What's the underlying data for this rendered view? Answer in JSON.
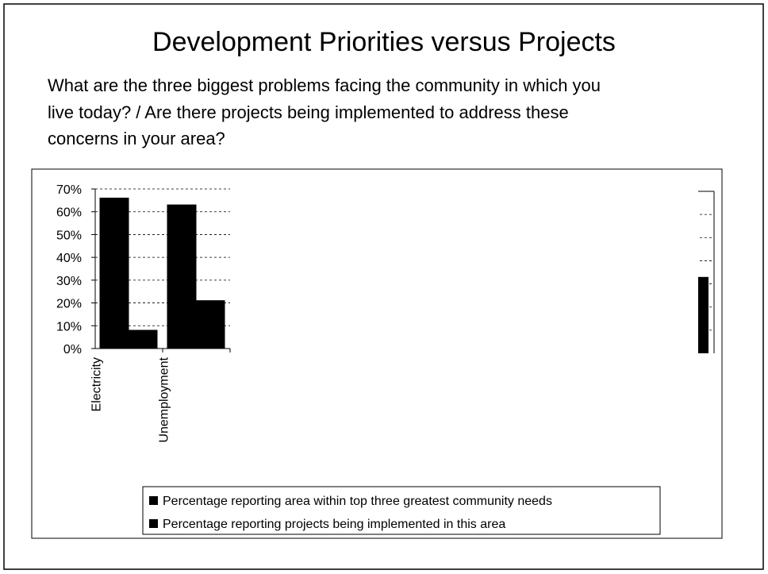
{
  "chart_data": {
    "type": "bar",
    "title": "Development Priorities versus Projects",
    "subtitle": [
      "What are the three biggest problems facing the community in which you",
      "live today? / Are there projects being implemented to address these",
      "concerns in your area?"
    ],
    "categories": [
      "Electricity",
      "Unemployment"
    ],
    "series": [
      {
        "name": "Percentage reporting area within top three greatest community needs",
        "color": "#000000",
        "values": [
          66,
          63
        ]
      },
      {
        "name": "Percentage reporting projects being implemented in this area",
        "color": "#000000",
        "values": [
          8,
          21
        ]
      }
    ],
    "ylim": [
      0,
      70
    ],
    "yticks": [
      {
        "value": 0,
        "label": "0%"
      },
      {
        "value": 10,
        "label": "10%"
      },
      {
        "value": 20,
        "label": "20%"
      },
      {
        "value": 30,
        "label": "30%"
      },
      {
        "value": 40,
        "label": "40%"
      },
      {
        "value": 50,
        "label": "50%"
      },
      {
        "value": 60,
        "label": "60%"
      },
      {
        "value": 70,
        "label": "70%"
      }
    ],
    "grid": true,
    "clipped_bar": 33
  }
}
